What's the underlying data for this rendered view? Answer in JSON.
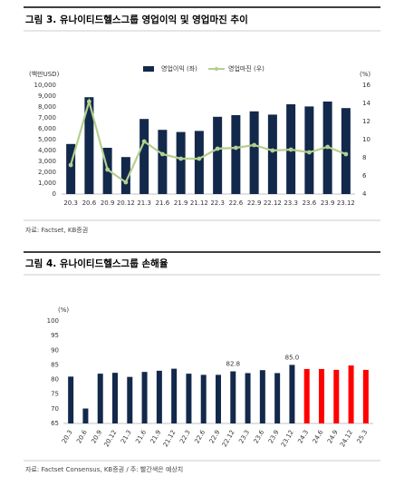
{
  "chart_data": [
    {
      "type": "combo",
      "title": "그림 3. 유나이티드헬스그룹 영업이익 및 영업마진 추이",
      "source": "자료: Factset, KB증권",
      "y_unit": "(백만USD)",
      "y2_unit": "(%)",
      "categories": [
        "20.3",
        "20.6",
        "20.9",
        "20.12",
        "21.3",
        "21.6",
        "21.9",
        "21.12",
        "22.3",
        "22.6",
        "22.9",
        "22.12",
        "23.3",
        "23.6",
        "23.9",
        "23.12"
      ],
      "series": [
        {
          "name": "영업이익 (좌)",
          "type": "bar",
          "color": "#13294b",
          "values": [
            4600,
            8900,
            4250,
            3400,
            6900,
            5900,
            5700,
            5800,
            7100,
            7250,
            7600,
            7300,
            8250,
            8050,
            8500,
            7900
          ]
        },
        {
          "name": "영업마진 (우)",
          "type": "line",
          "axis": "y2",
          "color": "#b5cf8e",
          "values": [
            7.2,
            14.2,
            6.7,
            5.3,
            9.8,
            8.4,
            7.9,
            7.9,
            9.0,
            9.1,
            9.4,
            8.8,
            8.9,
            8.6,
            9.2,
            8.4
          ]
        }
      ],
      "ylim": [
        0,
        10000
      ],
      "yticks": [
        0,
        {
          "value": 1000,
          "label": "1,000"
        },
        {
          "value": 2000,
          "label": "2,000"
        },
        {
          "value": 3000,
          "label": "3,000"
        },
        {
          "value": 4000,
          "label": "4,000"
        },
        {
          "value": 5000,
          "label": "5,000"
        },
        {
          "value": 6000,
          "label": "6,000"
        },
        {
          "value": 7000,
          "label": "7,000"
        },
        {
          "value": 8000,
          "label": "8,000"
        },
        {
          "value": 9000,
          "label": "9,000"
        },
        {
          "value": 10000,
          "label": "10,000"
        }
      ],
      "y2lim": [
        4,
        16
      ],
      "y2ticks": [
        4,
        6,
        8,
        10,
        12,
        14,
        16
      ],
      "legend": "top"
    },
    {
      "type": "bar",
      "title": "그림 4. 유나이티드헬스그룹 손해율",
      "source": "자료: Factset Consensus, KB증권 / 주: 빨간색은 예상치",
      "y_unit": "(%)",
      "categories": [
        "20.3",
        "20.6",
        "20.9",
        "20.12",
        "21.3",
        "21.6",
        "21.9",
        "21.12",
        "22.3",
        "22.6",
        "22.9",
        "22.12",
        "23.3",
        "23.6",
        "23.9",
        "23.12",
        "24.3",
        "24.6",
        "24.9",
        "24.12",
        "25.3"
      ],
      "values": [
        81.0,
        70.1,
        82.0,
        82.3,
        80.9,
        82.6,
        83.0,
        83.7,
        82.0,
        81.6,
        81.6,
        82.8,
        82.2,
        83.2,
        82.2,
        85.0,
        83.6,
        83.6,
        83.3,
        84.8,
        83.3
      ],
      "value_labels": [
        null,
        null,
        null,
        null,
        null,
        null,
        null,
        null,
        null,
        null,
        null,
        "82.8",
        null,
        null,
        null,
        "85.0",
        null,
        null,
        null,
        null,
        null
      ],
      "colors": [
        "#13294b",
        "#13294b",
        "#13294b",
        "#13294b",
        "#13294b",
        "#13294b",
        "#13294b",
        "#13294b",
        "#13294b",
        "#13294b",
        "#13294b",
        "#13294b",
        "#13294b",
        "#13294b",
        "#13294b",
        "#13294b",
        "#ff0000",
        "#ff0000",
        "#ff0000",
        "#ff0000",
        "#ff0000"
      ],
      "ylim": [
        65,
        100
      ],
      "yticks": [
        65,
        70,
        75,
        80,
        85,
        90,
        95,
        100
      ]
    }
  ]
}
